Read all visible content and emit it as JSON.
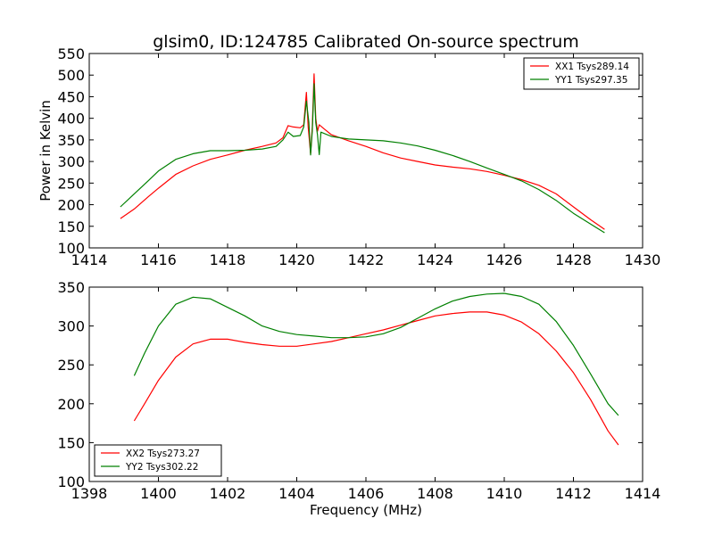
{
  "chart_data": [
    {
      "type": "line",
      "title": "glsim0, ID:124785 Calibrated On-source spectrum",
      "xlabel": "",
      "ylabel": "Power in Kelvin",
      "xlim": [
        1414,
        1430
      ],
      "ylim": [
        100,
        550
      ],
      "xticks": [
        1414,
        1416,
        1418,
        1420,
        1422,
        1424,
        1426,
        1428,
        1430
      ],
      "yticks": [
        100,
        150,
        200,
        250,
        300,
        350,
        400,
        450,
        500,
        550
      ],
      "grid": false,
      "legend_position": "top-right",
      "series": [
        {
          "name": "XX1 Tsys289.14",
          "color": "#ff0000",
          "points": [
            [
              1414.9,
              168
            ],
            [
              1415.3,
              190
            ],
            [
              1415.7,
              218
            ],
            [
              1416.0,
              238
            ],
            [
              1416.5,
              270
            ],
            [
              1417.0,
              290
            ],
            [
              1417.5,
              305
            ],
            [
              1418.0,
              315
            ],
            [
              1418.5,
              326
            ],
            [
              1419.0,
              335
            ],
            [
              1419.4,
              343
            ],
            [
              1419.6,
              355
            ],
            [
              1419.75,
              383
            ],
            [
              1419.9,
              380
            ],
            [
              1420.1,
              378
            ],
            [
              1420.2,
              385
            ],
            [
              1420.28,
              460
            ],
            [
              1420.33,
              380
            ],
            [
              1420.4,
              318
            ],
            [
              1420.45,
              380
            ],
            [
              1420.5,
              503
            ],
            [
              1420.55,
              400
            ],
            [
              1420.6,
              370
            ],
            [
              1420.65,
              385
            ],
            [
              1420.8,
              375
            ],
            [
              1421.0,
              362
            ],
            [
              1421.5,
              348
            ],
            [
              1422.0,
              335
            ],
            [
              1422.5,
              320
            ],
            [
              1423.0,
              308
            ],
            [
              1423.5,
              300
            ],
            [
              1424.0,
              292
            ],
            [
              1424.5,
              287
            ],
            [
              1425.0,
              283
            ],
            [
              1425.5,
              277
            ],
            [
              1426.0,
              268
            ],
            [
              1426.5,
              258
            ],
            [
              1427.0,
              245
            ],
            [
              1427.5,
              225
            ],
            [
              1428.0,
              195
            ],
            [
              1428.5,
              165
            ],
            [
              1428.9,
              143
            ]
          ]
        },
        {
          "name": "YY1 Tsys297.35",
          "color": "#008000",
          "points": [
            [
              1414.9,
              195
            ],
            [
              1415.3,
              225
            ],
            [
              1415.7,
              255
            ],
            [
              1416.0,
              278
            ],
            [
              1416.5,
              305
            ],
            [
              1417.0,
              318
            ],
            [
              1417.5,
              325
            ],
            [
              1418.0,
              325
            ],
            [
              1418.5,
              326
            ],
            [
              1419.0,
              329
            ],
            [
              1419.4,
              335
            ],
            [
              1419.6,
              350
            ],
            [
              1419.75,
              368
            ],
            [
              1419.9,
              358
            ],
            [
              1420.1,
              360
            ],
            [
              1420.2,
              380
            ],
            [
              1420.28,
              440
            ],
            [
              1420.35,
              390
            ],
            [
              1420.4,
              315
            ],
            [
              1420.45,
              370
            ],
            [
              1420.5,
              480
            ],
            [
              1420.55,
              390
            ],
            [
              1420.6,
              362
            ],
            [
              1420.65,
              316
            ],
            [
              1420.7,
              368
            ],
            [
              1421.0,
              358
            ],
            [
              1421.5,
              352
            ],
            [
              1422.0,
              350
            ],
            [
              1422.5,
              348
            ],
            [
              1423.0,
              343
            ],
            [
              1423.5,
              336
            ],
            [
              1424.0,
              326
            ],
            [
              1424.5,
              314
            ],
            [
              1425.0,
              300
            ],
            [
              1425.5,
              285
            ],
            [
              1426.0,
              270
            ],
            [
              1426.5,
              255
            ],
            [
              1427.0,
              235
            ],
            [
              1427.5,
              210
            ],
            [
              1428.0,
              180
            ],
            [
              1428.5,
              155
            ],
            [
              1428.9,
              135
            ]
          ]
        }
      ]
    },
    {
      "type": "line",
      "title": "",
      "xlabel": "Frequency (MHz)",
      "ylabel": "",
      "xlim": [
        1398,
        1414
      ],
      "ylim": [
        100,
        350
      ],
      "xticks": [
        1398,
        1400,
        1402,
        1404,
        1406,
        1408,
        1410,
        1412,
        1414
      ],
      "yticks": [
        100,
        150,
        200,
        250,
        300,
        350
      ],
      "grid": false,
      "legend_position": "bottom-left",
      "series": [
        {
          "name": "XX2 Tsys273.27",
          "color": "#ff0000",
          "points": [
            [
              1399.3,
              178
            ],
            [
              1399.6,
              200
            ],
            [
              1400.0,
              230
            ],
            [
              1400.5,
              260
            ],
            [
              1401.0,
              277
            ],
            [
              1401.5,
              283
            ],
            [
              1402.0,
              283
            ],
            [
              1402.5,
              279
            ],
            [
              1403.0,
              276
            ],
            [
              1403.5,
              274
            ],
            [
              1404.0,
              274
            ],
            [
              1404.5,
              277
            ],
            [
              1405.0,
              280
            ],
            [
              1405.5,
              285
            ],
            [
              1406.0,
              290
            ],
            [
              1406.5,
              295
            ],
            [
              1407.0,
              301
            ],
            [
              1407.5,
              307
            ],
            [
              1408.0,
              313
            ],
            [
              1408.5,
              316
            ],
            [
              1409.0,
              318
            ],
            [
              1409.5,
              318
            ],
            [
              1410.0,
              314
            ],
            [
              1410.5,
              305
            ],
            [
              1411.0,
              290
            ],
            [
              1411.5,
              268
            ],
            [
              1412.0,
              240
            ],
            [
              1412.5,
              205
            ],
            [
              1413.0,
              165
            ],
            [
              1413.3,
              147
            ]
          ]
        },
        {
          "name": "YY2 Tsys302.22",
          "color": "#008000",
          "points": [
            [
              1399.3,
              236
            ],
            [
              1399.6,
              265
            ],
            [
              1400.0,
              300
            ],
            [
              1400.5,
              328
            ],
            [
              1401.0,
              337
            ],
            [
              1401.5,
              335
            ],
            [
              1402.0,
              324
            ],
            [
              1402.5,
              313
            ],
            [
              1403.0,
              300
            ],
            [
              1403.5,
              293
            ],
            [
              1404.0,
              289
            ],
            [
              1404.5,
              287
            ],
            [
              1405.0,
              285
            ],
            [
              1405.5,
              285
            ],
            [
              1406.0,
              286
            ],
            [
              1406.5,
              290
            ],
            [
              1407.0,
              298
            ],
            [
              1407.5,
              310
            ],
            [
              1408.0,
              322
            ],
            [
              1408.5,
              332
            ],
            [
              1409.0,
              338
            ],
            [
              1409.5,
              341
            ],
            [
              1410.0,
              342
            ],
            [
              1410.5,
              338
            ],
            [
              1411.0,
              328
            ],
            [
              1411.5,
              306
            ],
            [
              1412.0,
              275
            ],
            [
              1412.5,
              238
            ],
            [
              1413.0,
              200
            ],
            [
              1413.3,
              185
            ]
          ]
        }
      ]
    }
  ]
}
